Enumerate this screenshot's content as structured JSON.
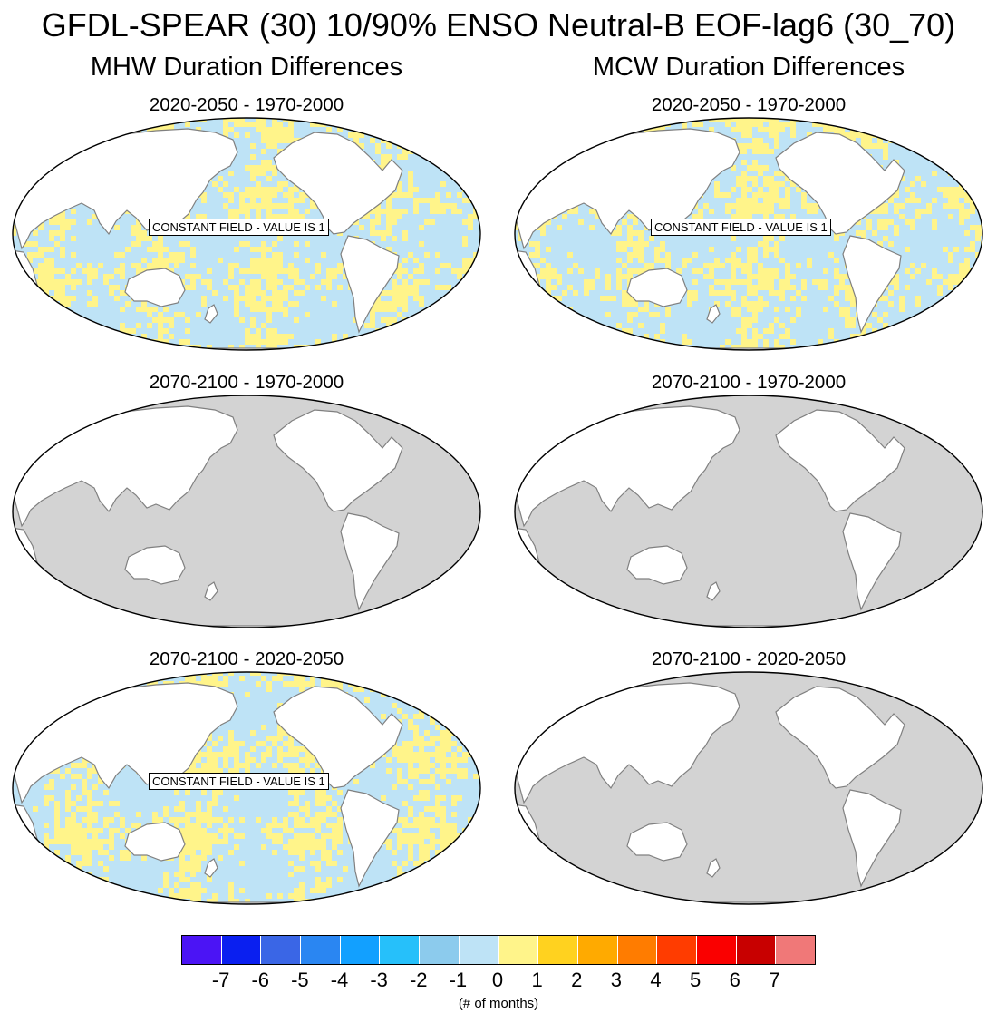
{
  "title": "GFDL-SPEAR (30) 10/90% ENSO Neutral-B EOF-lag6 (30_70)",
  "columns": {
    "left": "MHW Duration Differences",
    "right": "MCW Duration Differences"
  },
  "panels": [
    {
      "id": "p1",
      "title": "2020-2050 - 1970-2000",
      "fill": "mixed",
      "label": "CONSTANT FIELD - VALUE IS 1"
    },
    {
      "id": "p2",
      "title": "2020-2050 - 1970-2000",
      "fill": "mixed",
      "label": "CONSTANT FIELD - VALUE IS 1"
    },
    {
      "id": "p3",
      "title": "2070-2100 - 1970-2000",
      "fill": "missing",
      "label": ""
    },
    {
      "id": "p4",
      "title": "2070-2100 - 1970-2000",
      "fill": "missing",
      "label": ""
    },
    {
      "id": "p5",
      "title": "2070-2100 - 2020-2050",
      "fill": "mixed",
      "label": "CONSTANT FIELD - VALUE IS 1"
    },
    {
      "id": "p6",
      "title": "2070-2100 - 2020-2050",
      "fill": "missing",
      "label": ""
    }
  ],
  "colorbar": {
    "colors": [
      "#4b14f5",
      "#0a1ff0",
      "#3a66e6",
      "#2a86f2",
      "#12a0ff",
      "#26c0fa",
      "#8ccbed",
      "#bee3f6",
      "#fff48a",
      "#ffd21f",
      "#ffaa00",
      "#ff7c00",
      "#ff3c00",
      "#fa0000",
      "#c80000",
      "#f07878"
    ],
    "labels": [
      "-7",
      "-6",
      "-5",
      "-4",
      "-3",
      "-2",
      "-1",
      "0",
      "1",
      "2",
      "3",
      "4",
      "5",
      "6",
      "7"
    ],
    "units": "(# of months)"
  },
  "map_colors": {
    "ocean_missing": "#d3d3d3",
    "land": "#ffffff",
    "coast": "#808080",
    "low": "#bee3f6",
    "high": "#fff48a"
  }
}
